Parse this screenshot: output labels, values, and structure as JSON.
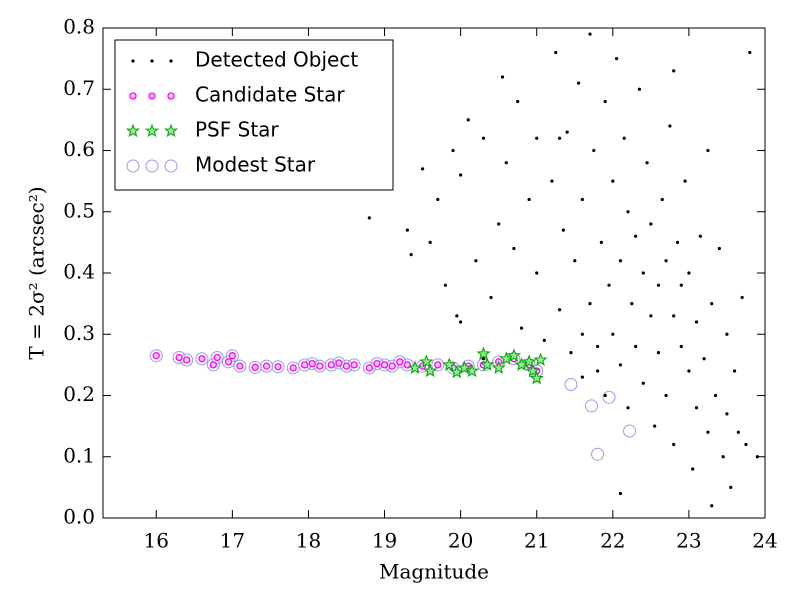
{
  "chart_data": {
    "type": "scatter",
    "xlabel": "Magnitude",
    "ylabel": "T = 2σ² (arcsec²)",
    "xlim": [
      15.3,
      24
    ],
    "ylim": [
      0,
      0.8
    ],
    "xticks": [
      16,
      17,
      18,
      19,
      20,
      21,
      22,
      23,
      24
    ],
    "yticks": [
      {
        "value": 0,
        "label": "0.0"
      },
      0.1,
      0.2,
      0.3,
      0.4,
      0.5,
      0.6,
      0.7,
      0.8
    ],
    "legend": "upper left",
    "series": [
      {
        "name": "Detected Object",
        "color": "#000000",
        "marker": "dot",
        "x": [
          18.7,
          18.8,
          19.3,
          19.35,
          19.5,
          19.6,
          19.7,
          19.8,
          19.9,
          19.95,
          20.0,
          20.1,
          20.2,
          20.3,
          20.4,
          20.5,
          20.55,
          20.6,
          20.7,
          20.75,
          20.8,
          20.9,
          21.0,
          21.0,
          21.1,
          21.2,
          21.25,
          21.3,
          21.35,
          21.4,
          21.45,
          21.5,
          21.55,
          21.6,
          21.6,
          21.7,
          21.7,
          21.75,
          21.8,
          21.85,
          21.9,
          21.9,
          21.95,
          22.0,
          22.0,
          22.05,
          22.1,
          22.1,
          22.15,
          22.2,
          22.2,
          22.25,
          22.3,
          22.3,
          22.35,
          22.4,
          22.4,
          22.45,
          22.5,
          22.5,
          22.55,
          22.6,
          22.6,
          22.65,
          22.7,
          22.7,
          22.75,
          22.8,
          22.8,
          22.85,
          22.9,
          22.9,
          22.95,
          23.0,
          23.0,
          23.05,
          23.1,
          23.1,
          23.15,
          23.2,
          23.25,
          23.25,
          23.3,
          23.35,
          23.4,
          23.45,
          23.5,
          23.5,
          23.55,
          23.6,
          23.65,
          23.7,
          23.75,
          23.8,
          23.9,
          22.1,
          23.3,
          22.8,
          21.3,
          20.3,
          20.0,
          21.6,
          21.8
        ],
        "values": [
          0.54,
          0.49,
          0.47,
          0.43,
          0.57,
          0.45,
          0.52,
          0.38,
          0.6,
          0.33,
          0.56,
          0.65,
          0.42,
          0.62,
          0.36,
          0.48,
          0.72,
          0.58,
          0.44,
          0.68,
          0.31,
          0.52,
          0.62,
          0.4,
          0.29,
          0.55,
          0.76,
          0.34,
          0.47,
          0.63,
          0.27,
          0.42,
          0.71,
          0.23,
          0.52,
          0.79,
          0.35,
          0.6,
          0.28,
          0.45,
          0.68,
          0.2,
          0.38,
          0.55,
          0.3,
          0.75,
          0.42,
          0.25,
          0.62,
          0.5,
          0.18,
          0.35,
          0.46,
          0.28,
          0.7,
          0.4,
          0.22,
          0.58,
          0.33,
          0.48,
          0.15,
          0.38,
          0.27,
          0.52,
          0.42,
          0.2,
          0.64,
          0.33,
          0.12,
          0.45,
          0.28,
          0.38,
          0.55,
          0.24,
          0.4,
          0.08,
          0.32,
          0.18,
          0.46,
          0.26,
          0.6,
          0.14,
          0.35,
          0.2,
          0.44,
          0.1,
          0.3,
          0.17,
          0.05,
          0.24,
          0.14,
          0.36,
          0.12,
          0.76,
          0.1,
          0.04,
          0.02,
          0.73,
          0.62,
          0.26,
          0.32,
          0.3,
          0.24
        ]
      },
      {
        "name": "Candidate Star",
        "color": "#ff00ff",
        "marker": "circle",
        "x": [
          16.0,
          16.3,
          16.4,
          16.6,
          16.75,
          16.8,
          16.95,
          17.0,
          17.1,
          17.3,
          17.45,
          17.6,
          17.8,
          17.95,
          18.05,
          18.15,
          18.3,
          18.4,
          18.5,
          18.6,
          18.8,
          18.9,
          19.0,
          19.1,
          19.2,
          19.3,
          19.5,
          19.7,
          19.9,
          20.1,
          20.3,
          20.5,
          20.7,
          20.9,
          21.0
        ],
        "values": [
          0.265,
          0.262,
          0.258,
          0.26,
          0.25,
          0.262,
          0.255,
          0.265,
          0.248,
          0.246,
          0.248,
          0.247,
          0.245,
          0.25,
          0.252,
          0.248,
          0.25,
          0.253,
          0.248,
          0.25,
          0.245,
          0.252,
          0.25,
          0.248,
          0.255,
          0.25,
          0.248,
          0.25,
          0.245,
          0.248,
          0.25,
          0.255,
          0.26,
          0.25,
          0.24
        ]
      },
      {
        "name": "PSF Star",
        "color": "#00a000",
        "marker": "star",
        "x": [
          19.4,
          19.55,
          19.6,
          19.85,
          19.95,
          20.05,
          20.15,
          20.3,
          20.35,
          20.5,
          20.6,
          20.7,
          20.8,
          20.9,
          20.95,
          21.0,
          21.05
        ],
        "values": [
          0.245,
          0.255,
          0.24,
          0.25,
          0.238,
          0.245,
          0.24,
          0.268,
          0.25,
          0.245,
          0.26,
          0.265,
          0.25,
          0.255,
          0.24,
          0.228,
          0.258
        ]
      },
      {
        "name": "Modest Star",
        "color": "#9999ee",
        "marker": "ring",
        "x": [
          16.0,
          16.3,
          16.4,
          16.6,
          16.75,
          16.8,
          16.95,
          17.0,
          17.1,
          17.3,
          17.45,
          17.6,
          17.8,
          17.95,
          18.05,
          18.15,
          18.3,
          18.4,
          18.5,
          18.6,
          18.8,
          18.9,
          19.0,
          19.1,
          19.2,
          19.3,
          19.5,
          19.7,
          19.9,
          20.1,
          20.3,
          20.5,
          20.7,
          20.9,
          21.0,
          21.45,
          21.72,
          21.95,
          21.8,
          22.22
        ],
        "values": [
          0.265,
          0.262,
          0.258,
          0.26,
          0.25,
          0.262,
          0.255,
          0.265,
          0.248,
          0.246,
          0.248,
          0.247,
          0.245,
          0.25,
          0.252,
          0.248,
          0.25,
          0.253,
          0.248,
          0.25,
          0.245,
          0.252,
          0.25,
          0.248,
          0.255,
          0.25,
          0.248,
          0.25,
          0.245,
          0.248,
          0.25,
          0.255,
          0.26,
          0.25,
          0.24,
          0.218,
          0.183,
          0.197,
          0.104,
          0.142
        ]
      }
    ]
  }
}
